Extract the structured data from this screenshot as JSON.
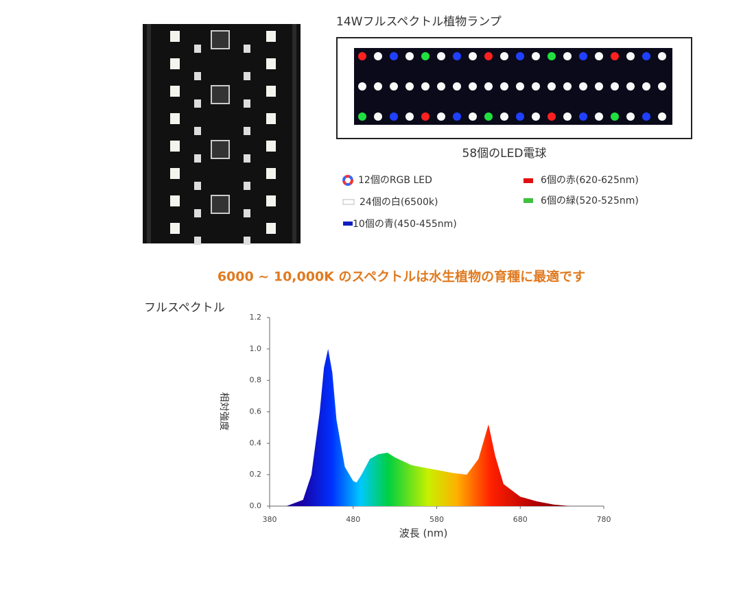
{
  "product_title": "14Wフルスペクトル植物ランプ",
  "led_total": "58個のLED電球",
  "legend": [
    "12個のRGB LED",
    "24個の白(6500k)",
    "10個の青(450-455nm)",
    "6個の赤(620-625nm)",
    "6個の緑(520-525nm)"
  ],
  "headline": "6000 ~ 10,000K のスペクトルは水生植物の育種に最適です",
  "chart_data": {
    "type": "area",
    "title": "フルスペクトル",
    "x_label": "波長 (nm)",
    "y_label": "相対強度",
    "x": [
      400,
      420,
      430,
      440,
      445,
      450,
      455,
      460,
      470,
      480,
      484,
      490,
      500,
      510,
      521,
      530,
      550,
      580,
      600,
      616,
      630,
      642,
      650,
      660,
      680,
      700,
      720,
      740
    ],
    "series": [
      {
        "values": [
          0,
          0.04,
          0.2,
          0.6,
          0.88,
          1.0,
          0.85,
          0.55,
          0.25,
          0.16,
          0.15,
          0.2,
          0.3,
          0.33,
          0.34,
          0.31,
          0.26,
          0.23,
          0.21,
          0.2,
          0.3,
          0.52,
          0.32,
          0.14,
          0.06,
          0.03,
          0.01,
          0
        ]
      }
    ],
    "xlim": [
      380,
      780
    ],
    "xticks": [
      380,
      480,
      580,
      680,
      780
    ],
    "ylim": [
      0,
      1.2
    ],
    "yticks": [
      {
        "value": 0,
        "label": "0.0"
      },
      0.2,
      0.4,
      0.6,
      0.8,
      {
        "value": 1,
        "label": "1.0"
      },
      1.2
    ]
  }
}
